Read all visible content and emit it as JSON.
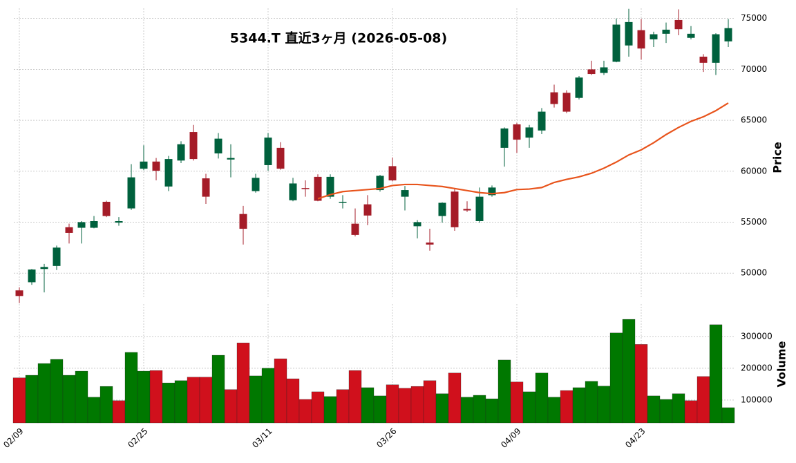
{
  "chart_data": {
    "type": "candlestick",
    "title": "5344.T  直近3ヶ月 (2026-05-08)",
    "categories": [
      "02/09",
      null,
      null,
      null,
      null,
      null,
      null,
      null,
      null,
      null,
      "02/25",
      null,
      null,
      null,
      null,
      null,
      null,
      null,
      null,
      null,
      "03/11",
      null,
      null,
      null,
      null,
      null,
      null,
      null,
      null,
      null,
      "03/26",
      null,
      null,
      null,
      null,
      null,
      null,
      null,
      null,
      null,
      "04/09",
      null,
      null,
      null,
      null,
      null,
      null,
      null,
      null,
      null,
      "04/23",
      null,
      null,
      null,
      null,
      null,
      null,
      null
    ],
    "open": [
      48300,
      49100,
      50400,
      50700,
      54500,
      54450,
      54450,
      57000,
      54950,
      56350,
      60250,
      60950,
      58500,
      61050,
      63850,
      59300,
      61750,
      61150,
      55800,
      58050,
      60600,
      62300,
      57150,
      58350,
      59450,
      57500,
      56950,
      54850,
      56750,
      58150,
      60500,
      57500,
      54600,
      53000,
      55600,
      58000,
      56300,
      55100,
      57650,
      62300,
      64600,
      63300,
      64000,
      67750,
      67700,
      67200,
      70000,
      69650,
      70750,
      72350,
      73850,
      72950,
      73500,
      74850,
      73100,
      71250,
      70650,
      72750
    ],
    "high": [
      48600,
      50400,
      50900,
      52700,
      54850,
      55100,
      55600,
      57100,
      55500,
      60700,
      62550,
      61300,
      61500,
      62950,
      64550,
      59750,
      63750,
      62650,
      56600,
      59750,
      63750,
      62850,
      59350,
      59100,
      59700,
      59700,
      57650,
      56350,
      57650,
      59650,
      61350,
      58550,
      55200,
      54350,
      56950,
      58350,
      57050,
      58400,
      58600,
      64300,
      64750,
      64550,
      66200,
      68500,
      67950,
      69350,
      70850,
      70850,
      75000,
      75950,
      74950,
      73700,
      74600,
      75900,
      74250,
      71500,
      73550,
      74950
    ],
    "low": [
      47050,
      48850,
      48100,
      50300,
      52900,
      52900,
      54400,
      55500,
      54650,
      56200,
      60100,
      59100,
      58050,
      60800,
      61050,
      56800,
      61250,
      59400,
      52800,
      57900,
      60050,
      60150,
      57050,
      57500,
      57050,
      57300,
      56350,
      53600,
      54700,
      58000,
      59000,
      56150,
      53400,
      52200,
      54950,
      54150,
      56000,
      54950,
      57500,
      60450,
      61800,
      62300,
      63650,
      66250,
      65700,
      67050,
      69450,
      69450,
      70700,
      71250,
      70950,
      72200,
      72600,
      73350,
      72950,
      69750,
      69450,
      72200
    ],
    "close": [
      47750,
      50350,
      50600,
      52500,
      53950,
      55000,
      55100,
      55600,
      55100,
      59400,
      60950,
      60050,
      61200,
      62650,
      61200,
      57500,
      63200,
      61300,
      54350,
      59350,
      63300,
      60250,
      58800,
      58300,
      57100,
      59450,
      57000,
      53750,
      55650,
      59550,
      59100,
      58150,
      55000,
      52800,
      56900,
      54500,
      56150,
      57500,
      58400,
      64200,
      63100,
      64300,
      65850,
      66600,
      65850,
      69200,
      69550,
      70200,
      74400,
      74650,
      72050,
      73450,
      73900,
      73950,
      73500,
      70650,
      73450,
      74050
    ],
    "up_color": "#00613d",
    "down_color": "#a51c28",
    "moving_average": {
      "color": "#e8541c",
      "values": [
        null,
        null,
        null,
        null,
        null,
        null,
        null,
        null,
        null,
        null,
        null,
        null,
        null,
        null,
        null,
        null,
        null,
        null,
        null,
        null,
        null,
        null,
        null,
        null,
        57300,
        57700,
        58000,
        58100,
        58200,
        58300,
        58600,
        58700,
        58700,
        58600,
        58500,
        58300,
        58100,
        57900,
        57800,
        57900,
        58200,
        58250,
        58400,
        58900,
        59200,
        59450,
        59800,
        60300,
        60900,
        61600,
        62100,
        62800,
        63600,
        64300,
        64900,
        65350,
        65950,
        66700
      ]
    },
    "ylabel": "Price",
    "ylim": [
      47500,
      76000
    ],
    "yticks": [
      50000,
      55000,
      60000,
      65000,
      70000,
      75000
    ],
    "grid": true,
    "volume": {
      "ylabel": "Volume",
      "values": [
        170000,
        178000,
        215000,
        228000,
        178000,
        191000,
        109000,
        143000,
        98000,
        250000,
        191000,
        193000,
        154000,
        161000,
        172000,
        172000,
        241000,
        133000,
        280000,
        176000,
        200000,
        230000,
        167000,
        102000,
        126000,
        111000,
        133000,
        193000,
        139000,
        113000,
        148000,
        137000,
        143000,
        161000,
        120000,
        185000,
        109000,
        115000,
        104000,
        226000,
        157000,
        126000,
        185000,
        109000,
        130000,
        139000,
        159000,
        144000,
        311000,
        354000,
        275000,
        113000,
        102000,
        120000,
        98000,
        174000,
        337000,
        76000
      ],
      "colors": [
        "#d0101c",
        "#007800",
        "#007800",
        "#007800",
        "#007800",
        "#007800",
        "#007800",
        "#007800",
        "#d0101c",
        "#007800",
        "#007800",
        "#d0101c",
        "#007800",
        "#007800",
        "#d0101c",
        "#d0101c",
        "#007800",
        "#d0101c",
        "#d0101c",
        "#007800",
        "#007800",
        "#d0101c",
        "#d0101c",
        "#d0101c",
        "#d0101c",
        "#007800",
        "#d0101c",
        "#d0101c",
        "#007800",
        "#007800",
        "#d0101c",
        "#d0101c",
        "#d0101c",
        "#d0101c",
        "#007800",
        "#d0101c",
        "#007800",
        "#007800",
        "#007800",
        "#007800",
        "#d0101c",
        "#007800",
        "#007800",
        "#007800",
        "#d0101c",
        "#007800",
        "#007800",
        "#007800",
        "#007800",
        "#007800",
        "#d0101c",
        "#007800",
        "#007800",
        "#007800",
        "#d0101c",
        "#d0101c",
        "#007800",
        "#007800"
      ],
      "ylim": [
        28000,
        402000
      ],
      "yticks": [
        100000,
        200000,
        300000
      ]
    }
  }
}
